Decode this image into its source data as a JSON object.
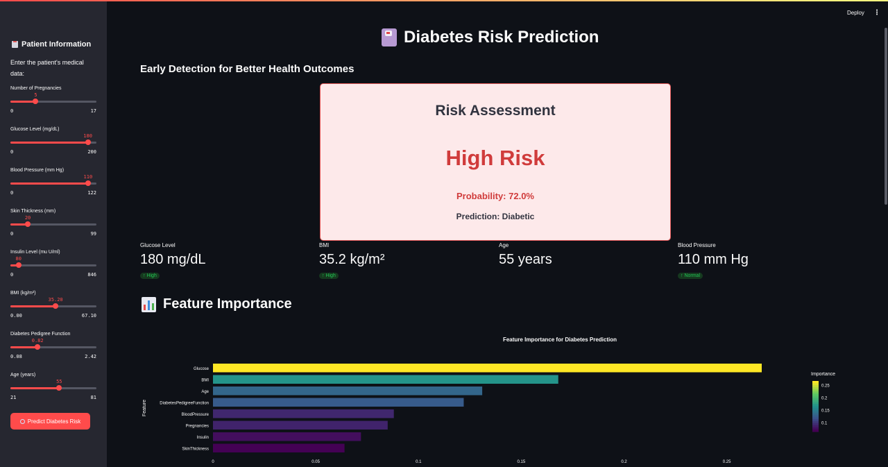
{
  "header": {
    "deploy_label": "Deploy",
    "menu_icon": "kebab-icon"
  },
  "sidebar": {
    "title": "Patient Information",
    "title_icon": "clipboard-icon",
    "intro": "Enter the patient's medical data:",
    "sliders": [
      {
        "label": "Number of Pregnancies",
        "value": "5",
        "min": "0",
        "max": "17",
        "fraction": 0.294
      },
      {
        "label": "Glucose Level (mg/dL)",
        "value": "180",
        "min": "0",
        "max": "200",
        "fraction": 0.9
      },
      {
        "label": "Blood Pressure (mm Hg)",
        "value": "110",
        "min": "0",
        "max": "122",
        "fraction": 0.902
      },
      {
        "label": "Skin Thickness (mm)",
        "value": "20",
        "min": "0",
        "max": "99",
        "fraction": 0.202
      },
      {
        "label": "Insulin Level (mu U/ml)",
        "value": "80",
        "min": "0",
        "max": "846",
        "fraction": 0.095
      },
      {
        "label": "BMI (kg/m²)",
        "value": "35.20",
        "min": "0.00",
        "max": "67.10",
        "fraction": 0.525
      },
      {
        "label": "Diabetes Pedigree Function",
        "value": "0.82",
        "min": "0.08",
        "max": "2.42",
        "fraction": 0.316
      },
      {
        "label": "Age (years)",
        "value": "55",
        "min": "21",
        "max": "81",
        "fraction": 0.567
      }
    ],
    "predict_button": "Predict Diabetes Risk",
    "predict_icon": "magnifier-icon"
  },
  "main": {
    "title": "Diabetes Risk Prediction",
    "title_icon": "medical-kit-icon",
    "subtitle": "Early Detection for Better Health Outcomes",
    "risk_card": {
      "heading": "Risk Assessment",
      "risk_level": "High Risk",
      "probability": "Probability: 72.0%",
      "prediction": "Prediction: Diabetic"
    },
    "metrics": [
      {
        "label": "Glucose Level",
        "value": "180 mg/dL",
        "delta": "↑ High"
      },
      {
        "label": "BMI",
        "value": "35.2 kg/m²",
        "delta": "↑ High"
      },
      {
        "label": "Age",
        "value": "55 years",
        "delta": ""
      },
      {
        "label": "Blood Pressure",
        "value": "110 mm Hg",
        "delta": "↑ Normal"
      }
    ],
    "feature_section_title": "Feature Importance",
    "feature_section_icon": "bar-chart-icon"
  },
  "chart_data": {
    "type": "bar",
    "orientation": "horizontal",
    "title": "Feature Importance for Diabetes Prediction",
    "xlabel": "",
    "ylabel": "Feature",
    "categories": [
      "Glucose",
      "BMI",
      "Age",
      "DiabetesPedigreeFunction",
      "BloodPressure",
      "Pregnancies",
      "Insulin",
      "SkinThickness"
    ],
    "values": [
      0.267,
      0.168,
      0.131,
      0.122,
      0.088,
      0.085,
      0.072,
      0.064
    ],
    "xlim": [
      0,
      0.267
    ],
    "xticks": [
      "0",
      "0.05",
      "0.1",
      "0.15",
      "0.2",
      "0.25"
    ],
    "colorscale": "viridis",
    "colorbar": {
      "title": "Importance",
      "ticks": [
        "0.25",
        "0.2",
        "0.15",
        "0.1"
      ],
      "range": [
        0.064,
        0.267
      ]
    },
    "grid": false
  }
}
